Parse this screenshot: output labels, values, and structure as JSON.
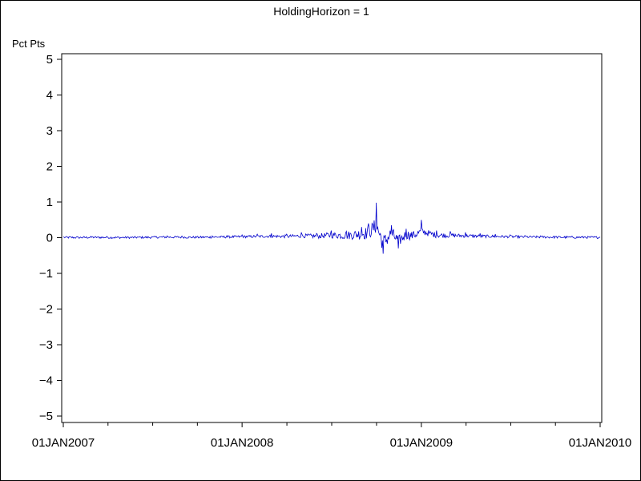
{
  "chart_data": {
    "type": "line",
    "title": "HoldingHorizon = 1",
    "ylabel": "Pct Pts",
    "xlabel": "",
    "ylim": [
      -5,
      5
    ],
    "yticks": [
      5,
      4,
      3,
      2,
      1,
      0,
      -1,
      -2,
      -3,
      -4,
      -5
    ],
    "ytick_labels": [
      "5",
      "4",
      "3",
      "2",
      "1",
      "0",
      "−1",
      "−2",
      "−3",
      "−4",
      "−5"
    ],
    "xlim": [
      "2007-01-01",
      "2010-01-01"
    ],
    "xticks": [
      "2007-01-01",
      "2008-01-01",
      "2009-01-01",
      "2010-01-01"
    ],
    "xtick_labels": [
      "01JAN2007",
      "01JAN2008",
      "01JAN2009",
      "01JAN2010"
    ],
    "x_minor_ticks_per_major": 4,
    "grid": false,
    "series_color": "#0000cc",
    "x": [
      "2007-01-01",
      "2007-02-01",
      "2007-03-01",
      "2007-04-01",
      "2007-05-01",
      "2007-06-01",
      "2007-07-01",
      "2007-08-01",
      "2007-09-01",
      "2007-10-01",
      "2007-11-01",
      "2007-12-01",
      "2008-01-01",
      "2008-02-01",
      "2008-03-01",
      "2008-04-01",
      "2008-05-01",
      "2008-06-01",
      "2008-07-01",
      "2008-08-01",
      "2008-09-01",
      "2008-09-15",
      "2008-10-01",
      "2008-10-15",
      "2008-11-01",
      "2008-11-15",
      "2008-12-01",
      "2008-12-15",
      "2009-01-01",
      "2009-02-01",
      "2009-03-01",
      "2009-04-01",
      "2009-05-01",
      "2009-06-01",
      "2009-07-01",
      "2009-08-01",
      "2009-09-01",
      "2009-10-01",
      "2009-11-01",
      "2009-12-01",
      "2010-01-01"
    ],
    "series": [
      {
        "values": [
          0.02,
          0.01,
          0.03,
          0.02,
          0.01,
          0.02,
          0.03,
          0.05,
          0.04,
          0.03,
          0.05,
          0.06,
          0.08,
          0.1,
          0.12,
          0.1,
          0.15,
          0.12,
          0.2,
          0.18,
          0.3,
          0.4,
          0.98,
          -0.45,
          0.35,
          -0.3,
          0.25,
          0.15,
          0.5,
          0.2,
          0.18,
          0.15,
          0.12,
          0.1,
          0.08,
          0.06,
          0.05,
          0.04,
          0.03,
          0.03,
          0.02
        ]
      }
    ]
  }
}
